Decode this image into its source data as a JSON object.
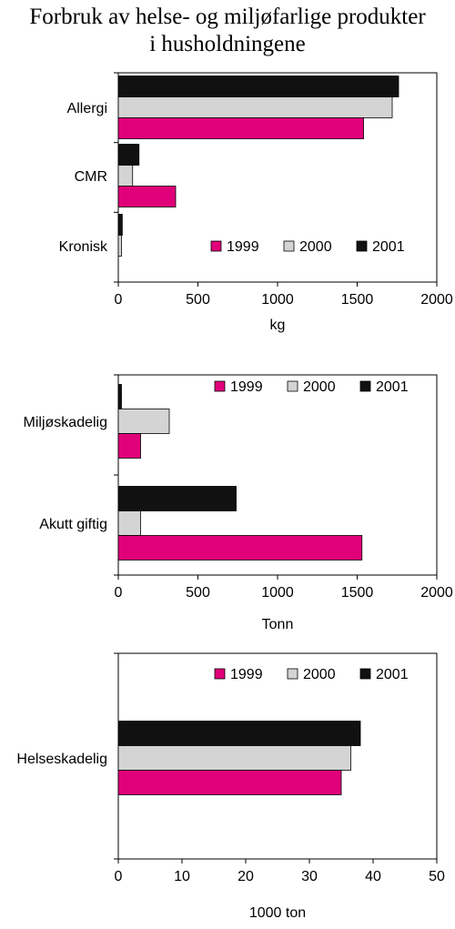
{
  "title_lines": [
    "Forbruk av helse- og miljøfarlige produkter",
    "i husholdningene"
  ],
  "colors": {
    "1999": "#e0007a",
    "2000": "#d4d4d4",
    "2001": "#111111"
  },
  "chart_data": [
    {
      "type": "bar",
      "orientation": "horizontal",
      "categories": [
        "Allergi",
        "CMR",
        "Kronisk"
      ],
      "series": [
        {
          "name": "1999",
          "values": [
            1540,
            360,
            0
          ]
        },
        {
          "name": "2000",
          "values": [
            1720,
            90,
            20
          ]
        },
        {
          "name": "2001",
          "values": [
            1760,
            130,
            25
          ]
        }
      ],
      "xlabel": "kg",
      "xlim": [
        0,
        2000
      ],
      "xticks": [
        "0",
        "500",
        "1000",
        "1500",
        "2000"
      ],
      "legend": "bottom-right"
    },
    {
      "type": "bar",
      "orientation": "horizontal",
      "categories": [
        "Miljøskadelig",
        "Akutt giftig"
      ],
      "series": [
        {
          "name": "1999",
          "values": [
            140,
            1530
          ]
        },
        {
          "name": "2000",
          "values": [
            320,
            140
          ]
        },
        {
          "name": "2001",
          "values": [
            20,
            740
          ]
        }
      ],
      "xlabel": "Tonn",
      "xlim": [
        0,
        2000
      ],
      "xticks": [
        "0",
        "500",
        "1000",
        "1500",
        "2000"
      ],
      "legend": "top-right"
    },
    {
      "type": "bar",
      "orientation": "horizontal",
      "categories": [
        "Helseskadelig"
      ],
      "series": [
        {
          "name": "1999",
          "values": [
            35
          ]
        },
        {
          "name": "2000",
          "values": [
            36.5
          ]
        },
        {
          "name": "2001",
          "values": [
            38
          ]
        }
      ],
      "xlabel": "1000 ton",
      "xlim": [
        0,
        50
      ],
      "xticks": [
        "0",
        "10",
        "20",
        "30",
        "40",
        "50"
      ],
      "legend": "top-right"
    }
  ]
}
